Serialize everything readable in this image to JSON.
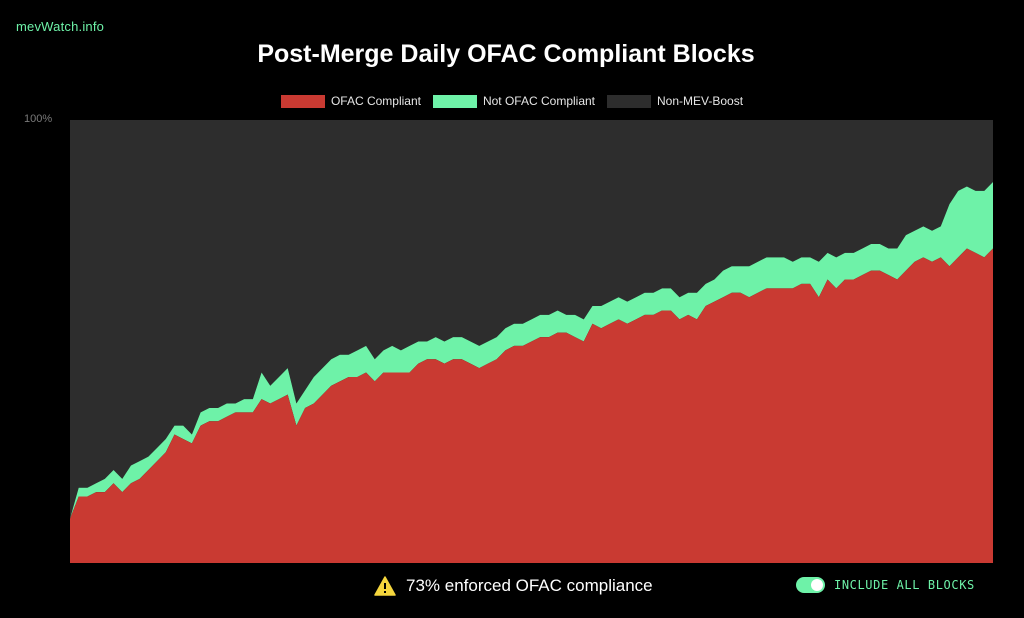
{
  "site": {
    "name": "mevWatch.info"
  },
  "chart_data": {
    "type": "area",
    "title": "Post-Merge Daily OFAC Compliant Blocks",
    "legend_position": "top",
    "ylim": [
      0,
      100
    ],
    "y_tick_label": "100%",
    "stacked": true,
    "grid": false,
    "series": [
      {
        "name": "OFAC Compliant",
        "color": "#c93a32",
        "values": [
          10,
          15,
          15,
          16,
          16,
          18,
          16,
          18,
          19,
          21,
          23,
          25,
          29,
          28,
          27,
          31,
          32,
          32,
          33,
          34,
          34,
          34,
          37,
          36,
          37,
          38,
          31,
          35,
          36,
          38,
          40,
          41,
          42,
          42,
          43,
          41,
          43,
          43,
          43,
          43,
          45,
          46,
          46,
          45,
          46,
          46,
          45,
          44,
          45,
          46,
          48,
          49,
          49,
          50,
          51,
          51,
          52,
          52,
          51,
          50,
          54,
          53,
          54,
          55,
          54,
          55,
          56,
          56,
          57,
          57,
          55,
          56,
          55,
          58,
          59,
          60,
          61,
          61,
          60,
          61,
          62,
          62,
          62,
          62,
          63,
          63,
          60,
          64,
          62,
          64,
          64,
          65,
          66,
          66,
          65,
          64,
          66,
          68,
          69,
          68,
          69,
          67,
          69,
          71,
          70,
          69,
          71
        ]
      },
      {
        "name": "Not OFAC Compliant",
        "color": "#6ef2a8",
        "values": [
          0,
          2,
          2,
          2,
          3,
          3,
          3,
          4,
          4,
          3,
          3,
          3,
          2,
          3,
          2,
          3,
          3,
          3,
          3,
          2,
          3,
          3,
          6,
          4,
          5,
          6,
          5,
          4,
          6,
          6,
          6,
          6,
          5,
          6,
          6,
          5,
          5,
          6,
          5,
          6,
          5,
          4,
          5,
          5,
          5,
          5,
          5,
          5,
          5,
          5,
          5,
          5,
          5,
          5,
          5,
          5,
          5,
          4,
          5,
          5,
          4,
          5,
          5,
          5,
          5,
          5,
          5,
          5,
          5,
          5,
          5,
          5,
          6,
          5,
          5,
          6,
          6,
          6,
          7,
          7,
          7,
          7,
          7,
          6,
          6,
          6,
          8,
          6,
          7,
          6,
          6,
          6,
          6,
          6,
          6,
          7,
          8,
          7,
          7,
          7,
          7,
          14,
          15,
          14,
          14,
          15,
          15
        ]
      },
      {
        "name": "Non-MEV-Boost",
        "color": "#2d2d2d",
        "values": [
          90,
          83,
          83,
          82,
          81,
          79,
          81,
          78,
          77,
          76,
          74,
          72,
          69,
          69,
          71,
          66,
          65,
          65,
          64,
          64,
          63,
          63,
          57,
          60,
          58,
          56,
          64,
          61,
          58,
          56,
          54,
          53,
          53,
          52,
          51,
          54,
          52,
          51,
          52,
          51,
          50,
          50,
          49,
          50,
          49,
          49,
          50,
          51,
          50,
          49,
          47,
          46,
          46,
          45,
          44,
          44,
          43,
          44,
          44,
          45,
          42,
          42,
          41,
          40,
          41,
          40,
          39,
          39,
          38,
          38,
          40,
          39,
          39,
          37,
          36,
          34,
          33,
          33,
          33,
          32,
          31,
          31,
          31,
          32,
          31,
          31,
          32,
          30,
          31,
          30,
          30,
          29,
          28,
          28,
          29,
          29,
          26,
          25,
          24,
          25,
          24,
          19,
          16,
          15,
          16,
          16,
          14
        ]
      }
    ]
  },
  "footer": {
    "note": "73% enforced OFAC compliance",
    "toggle_label": "INCLUDE ALL BLOCKS",
    "toggle_on": true
  },
  "icons": {
    "warning": "warning-icon",
    "toggle": "toggle-switch"
  }
}
